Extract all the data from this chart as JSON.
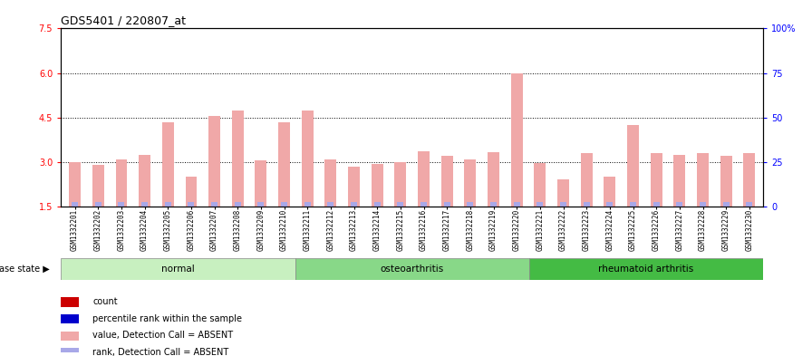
{
  "title": "GDS5401 / 220807_at",
  "samples": [
    "GSM1332201",
    "GSM1332202",
    "GSM1332203",
    "GSM1332204",
    "GSM1332205",
    "GSM1332206",
    "GSM1332207",
    "GSM1332208",
    "GSM1332209",
    "GSM1332210",
    "GSM1332211",
    "GSM1332212",
    "GSM1332213",
    "GSM1332214",
    "GSM1332215",
    "GSM1332216",
    "GSM1332217",
    "GSM1332218",
    "GSM1332219",
    "GSM1332220",
    "GSM1332221",
    "GSM1332222",
    "GSM1332223",
    "GSM1332224",
    "GSM1332225",
    "GSM1332226",
    "GSM1332227",
    "GSM1332228",
    "GSM1332229",
    "GSM1332230"
  ],
  "values": [
    3.0,
    2.9,
    3.1,
    3.25,
    4.35,
    2.5,
    4.55,
    4.75,
    3.05,
    4.35,
    4.75,
    3.1,
    2.85,
    2.92,
    3.0,
    3.35,
    3.2,
    3.1,
    3.32,
    6.0,
    2.95,
    2.4,
    3.3,
    2.5,
    4.25,
    3.3,
    3.25,
    3.3,
    3.2,
    3.3
  ],
  "groups": [
    {
      "label": "normal",
      "start": 0,
      "end": 10,
      "color": "#c8f0c0"
    },
    {
      "label": "osteoarthritis",
      "start": 10,
      "end": 20,
      "color": "#88d888"
    },
    {
      "label": "rheumatoid arthritis",
      "start": 20,
      "end": 30,
      "color": "#44bb44"
    }
  ],
  "bar_color": "#f0a8a8",
  "rank_color": "#a8a8e8",
  "rank_bar_height": 0.15,
  "ymin": 1.5,
  "ymax": 7.5,
  "yticks_left": [
    1.5,
    3.0,
    4.5,
    6.0,
    7.5
  ],
  "yticks_right": [
    0,
    25,
    50,
    75,
    100
  ],
  "dotted_levels": [
    3.0,
    4.5,
    6.0
  ],
  "xtick_bg_color": "#cccccc",
  "legend_items": [
    {
      "label": "count",
      "color": "#cc0000"
    },
    {
      "label": "percentile rank within the sample",
      "color": "#0000cc"
    },
    {
      "label": "value, Detection Call = ABSENT",
      "color": "#f0a8a8"
    },
    {
      "label": "rank, Detection Call = ABSENT",
      "color": "#a8a8e8"
    }
  ]
}
